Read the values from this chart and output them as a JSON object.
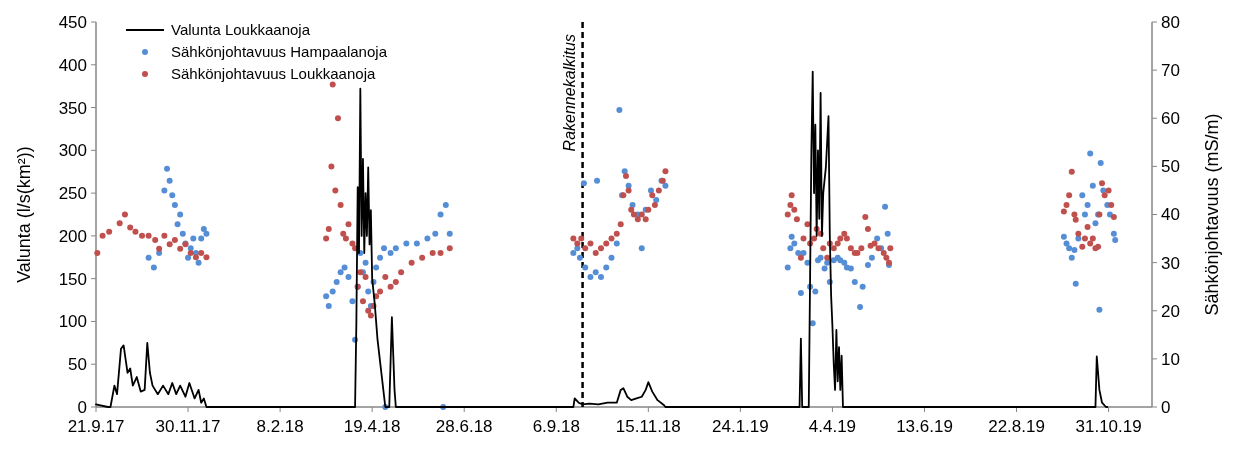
{
  "chart_data": {
    "type": "line",
    "ylabel": "Valunta (l/s(km²))",
    "y2label": "Sähkönjohtavuus (mS/m)",
    "xlim": [
      "2017-09-21",
      "2019-12-03"
    ],
    "xticks": [
      {
        "value": "2017-09-21",
        "label": "21.9.17"
      },
      {
        "value": "2017-11-30",
        "label": "30.11.17"
      },
      {
        "value": "2018-02-08",
        "label": "8.2.18"
      },
      {
        "value": "2018-04-19",
        "label": "19.4.18"
      },
      {
        "value": "2018-06-28",
        "label": "28.6.18"
      },
      {
        "value": "2018-09-06",
        "label": "6.9.18"
      },
      {
        "value": "2018-11-15",
        "label": "15.11.18"
      },
      {
        "value": "2019-01-24",
        "label": "24.1.19"
      },
      {
        "value": "2019-04-04",
        "label": "4.4.19"
      },
      {
        "value": "2019-06-13",
        "label": "13.6.19"
      },
      {
        "value": "2019-08-22",
        "label": "22.8.19"
      },
      {
        "value": "2019-10-31",
        "label": "31.10.19"
      }
    ],
    "ylim": [
      0,
      450
    ],
    "yticks": [
      0,
      50,
      100,
      150,
      200,
      250,
      300,
      350,
      400,
      450
    ],
    "y2lim": [
      0,
      80
    ],
    "y2ticks": [
      0,
      10,
      20,
      30,
      40,
      50,
      60,
      70,
      80
    ],
    "grid": false,
    "legend": "top left",
    "ref_lines": [
      {
        "axis": "x",
        "value": "2018-09-26",
        "label": "Rakennekalkitus",
        "color": "#000000",
        "line_style": "dashed"
      }
    ],
    "series": [
      {
        "name": "Valunta Loukkaanoja",
        "color": "#000000",
        "marker": "none",
        "line_style": "solid",
        "x": [
          "2017-09-21",
          "2017-09-30",
          "2017-10-02",
          "2017-10-05",
          "2017-10-07",
          "2017-10-10",
          "2017-10-12",
          "2017-10-15",
          "2017-10-17",
          "2017-10-19",
          "2017-10-22",
          "2017-10-25",
          "2017-10-28",
          "2017-10-30",
          "2017-11-01",
          "2017-11-03",
          "2017-11-07",
          "2017-11-11",
          "2017-11-15",
          "2017-11-18",
          "2017-11-21",
          "2017-11-24",
          "2017-11-28",
          "2017-12-01",
          "2017-12-05",
          "2017-12-08",
          "2017-12-10",
          "2017-12-12",
          "2017-12-14",
          "2018-04-05",
          "2018-04-06",
          "2018-04-07",
          "2018-04-08",
          "2018-04-09",
          "2018-04-10",
          "2018-04-11",
          "2018-04-12",
          "2018-04-13",
          "2018-04-14",
          "2018-04-15",
          "2018-04-16",
          "2018-04-17",
          "2018-04-18",
          "2018-04-19",
          "2018-04-21",
          "2018-04-23",
          "2018-04-26",
          "2018-04-29",
          "2018-05-02",
          "2018-05-04",
          "2018-05-06",
          "2018-05-07",
          "2018-09-19",
          "2018-09-20",
          "2018-09-23",
          "2018-09-26",
          "2018-10-01",
          "2018-10-08",
          "2018-10-15",
          "2018-10-22",
          "2018-10-25",
          "2018-10-27",
          "2018-10-30",
          "2018-11-02",
          "2018-11-06",
          "2018-11-10",
          "2018-11-13",
          "2018-11-15",
          "2018-11-18",
          "2018-11-22",
          "2018-11-27",
          "2018-11-28",
          "2019-03-10",
          "2019-03-11",
          "2019-03-12",
          "2019-03-17",
          "2019-03-18",
          "2019-03-19",
          "2019-03-20",
          "2019-03-21",
          "2019-03-22",
          "2019-03-23",
          "2019-03-24",
          "2019-03-25",
          "2019-03-26",
          "2019-03-27",
          "2019-03-28",
          "2019-03-30",
          "2019-04-01",
          "2019-04-02",
          "2019-04-03",
          "2019-04-04",
          "2019-04-05",
          "2019-04-06",
          "2019-04-07",
          "2019-04-08",
          "2019-04-09",
          "2019-04-10",
          "2019-04-11",
          "2019-04-12",
          "2019-10-21",
          "2019-10-22",
          "2019-10-24",
          "2019-10-26",
          "2019-10-29",
          "2019-10-30"
        ],
        "values": [
          3,
          0,
          0,
          25,
          15,
          68,
          72,
          40,
          45,
          25,
          35,
          18,
          20,
          75,
          40,
          25,
          15,
          25,
          15,
          28,
          15,
          25,
          12,
          28,
          10,
          20,
          5,
          10,
          0,
          0,
          0,
          100,
          257,
          180,
          372,
          200,
          290,
          180,
          250,
          200,
          280,
          190,
          230,
          150,
          120,
          80,
          40,
          0,
          0,
          105,
          20,
          0,
          0,
          10,
          5,
          3,
          4,
          3,
          5,
          5,
          20,
          22,
          12,
          8,
          10,
          12,
          20,
          29,
          18,
          8,
          2,
          0,
          0,
          80,
          0,
          0,
          150,
          300,
          392,
          250,
          330,
          200,
          300,
          220,
          367,
          200,
          250,
          280,
          340,
          200,
          130,
          94,
          50,
          20,
          90,
          30,
          70,
          20,
          60,
          0,
          0,
          59,
          20,
          5,
          0,
          0
        ]
      },
      {
        "name": "Sähkönjohtavuus Hampaalanoja",
        "type": "scatter",
        "axis": "y2",
        "color": "#558ed5",
        "marker": "circle",
        "x": [
          "2017-10-31",
          "2017-11-04",
          "2017-11-08",
          "2017-11-12",
          "2017-11-14",
          "2017-11-16",
          "2017-11-18",
          "2017-11-20",
          "2017-11-22",
          "2017-11-24",
          "2017-11-26",
          "2017-11-28",
          "2017-11-30",
          "2017-12-02",
          "2017-12-04",
          "2017-12-06",
          "2017-12-08",
          "2017-12-10",
          "2017-12-12",
          "2017-12-14",
          "2018-03-15",
          "2018-03-17",
          "2018-03-20",
          "2018-03-23",
          "2018-03-26",
          "2018-03-29",
          "2018-04-01",
          "2018-04-04",
          "2018-04-06",
          "2018-04-08",
          "2018-04-10",
          "2018-04-12",
          "2018-04-14",
          "2018-04-16",
          "2018-04-18",
          "2018-04-20",
          "2018-04-22",
          "2018-04-25",
          "2018-04-28",
          "2018-04-29",
          "2018-05-03",
          "2018-05-07",
          "2018-05-15",
          "2018-05-23",
          "2018-05-31",
          "2018-06-06",
          "2018-06-10",
          "2018-06-12",
          "2018-06-14",
          "2018-06-17",
          "2018-09-19",
          "2018-09-22",
          "2018-09-24",
          "2018-09-27",
          "2018-09-28",
          "2018-10-02",
          "2018-10-06",
          "2018-10-07",
          "2018-10-10",
          "2018-10-14",
          "2018-10-18",
          "2018-10-22",
          "2018-10-24",
          "2018-10-26",
          "2018-10-28",
          "2018-10-31",
          "2018-11-03",
          "2018-11-07",
          "2018-11-10",
          "2018-11-13",
          "2018-11-17",
          "2018-11-21",
          "2018-11-25",
          "2018-11-28",
          "2019-03-01",
          "2019-03-03",
          "2019-03-04",
          "2019-03-06",
          "2019-03-09",
          "2019-03-11",
          "2019-03-13",
          "2019-03-16",
          "2019-03-18",
          "2019-03-20",
          "2019-03-22",
          "2019-03-24",
          "2019-03-26",
          "2019-03-29",
          "2019-03-31",
          "2019-04-02",
          "2019-04-05",
          "2019-04-08",
          "2019-04-10",
          "2019-04-13",
          "2019-04-15",
          "2019-04-18",
          "2019-04-21",
          "2019-04-25",
          "2019-04-27",
          "2019-05-01",
          "2019-05-04",
          "2019-05-08",
          "2019-05-11",
          "2019-05-14",
          "2019-05-16",
          "2019-05-17",
          "2019-09-27",
          "2019-09-29",
          "2019-10-01",
          "2019-10-03",
          "2019-10-05",
          "2019-10-06",
          "2019-10-08",
          "2019-10-11",
          "2019-10-13",
          "2019-10-15",
          "2019-10-17",
          "2019-10-19",
          "2019-10-21",
          "2019-10-23",
          "2019-10-24",
          "2019-10-25",
          "2019-10-27",
          "2019-10-30",
          "2019-11-01",
          "2019-11-04",
          "2019-11-05"
        ],
        "values": [
          31,
          29,
          32,
          45,
          49.5,
          47,
          44,
          42,
          38,
          40,
          36,
          34,
          31,
          33,
          35,
          32,
          30,
          35,
          37,
          36,
          23,
          21,
          24,
          26,
          28,
          29,
          27,
          22,
          14,
          25,
          32,
          28,
          30,
          24,
          21,
          26,
          29,
          31,
          33,
          0,
          32,
          33,
          34,
          34,
          35,
          36,
          40,
          0,
          42,
          36,
          32,
          33,
          31,
          46.5,
          29,
          27,
          28,
          47,
          27,
          29,
          31,
          34,
          61.7,
          44,
          49,
          46,
          42,
          40,
          33,
          41,
          45,
          43,
          47,
          46,
          29,
          33,
          35.4,
          34,
          32,
          23.7,
          32,
          30,
          25,
          17.4,
          24,
          30.5,
          31,
          28.8,
          30,
          26,
          30.5,
          31,
          30.5,
          30,
          29,
          28.8,
          26,
          20.8,
          25,
          29.5,
          31,
          35,
          33,
          41.6,
          36,
          29.5,
          35.4,
          34,
          33,
          31,
          32.6,
          25.6,
          35,
          44,
          40,
          42,
          52.7,
          46,
          38.2,
          40,
          20.2,
          50.7,
          45,
          42,
          40,
          36,
          34.7
        ]
      },
      {
        "name": "Sähkönjohtavuus Loukkaanoja",
        "type": "scatter",
        "axis": "y2",
        "color": "#c0504d",
        "marker": "circle",
        "x": [
          "2017-09-22",
          "2017-09-26",
          "2017-10-01",
          "2017-10-09",
          "2017-10-13",
          "2017-10-17",
          "2017-10-21",
          "2017-10-26",
          "2017-10-31",
          "2017-11-05",
          "2017-11-08",
          "2017-11-12",
          "2017-11-16",
          "2017-11-20",
          "2017-11-24",
          "2017-11-28",
          "2017-12-02",
          "2017-12-06",
          "2017-12-10",
          "2017-12-14",
          "2018-03-15",
          "2018-03-17",
          "2018-03-19",
          "2018-03-20",
          "2018-03-22",
          "2018-03-24",
          "2018-03-26",
          "2018-03-28",
          "2018-03-30",
          "2018-04-01",
          "2018-04-04",
          "2018-04-06",
          "2018-04-08",
          "2018-04-10",
          "2018-04-12",
          "2018-04-14",
          "2018-04-16",
          "2018-04-18",
          "2018-04-20",
          "2018-04-22",
          "2018-04-25",
          "2018-04-29",
          "2018-05-03",
          "2018-05-07",
          "2018-05-11",
          "2018-05-19",
          "2018-05-27",
          "2018-06-04",
          "2018-06-10",
          "2018-06-17",
          "2018-09-19",
          "2018-09-22",
          "2018-09-25",
          "2018-09-28",
          "2018-10-02",
          "2018-10-06",
          "2018-10-10",
          "2018-10-14",
          "2018-10-18",
          "2018-10-22",
          "2018-10-25",
          "2018-10-27",
          "2018-10-29",
          "2018-10-31",
          "2018-11-02",
          "2018-11-04",
          "2018-11-07",
          "2018-11-10",
          "2018-11-13",
          "2018-11-15",
          "2018-11-18",
          "2018-11-20",
          "2018-11-23",
          "2018-11-26",
          "2018-11-28",
          "2019-03-01",
          "2019-03-03",
          "2019-03-04",
          "2019-03-06",
          "2019-03-08",
          "2019-03-11",
          "2019-03-13",
          "2019-03-16",
          "2019-03-18",
          "2019-03-21",
          "2019-03-23",
          "2019-03-26",
          "2019-03-28",
          "2019-03-31",
          "2019-04-02",
          "2019-04-05",
          "2019-04-08",
          "2019-04-10",
          "2019-04-13",
          "2019-04-15",
          "2019-04-18",
          "2019-04-21",
          "2019-04-23",
          "2019-04-26",
          "2019-04-29",
          "2019-05-01",
          "2019-05-03",
          "2019-05-06",
          "2019-05-09",
          "2019-05-13",
          "2019-05-15",
          "2019-05-17",
          "2019-05-18",
          "2019-09-27",
          "2019-09-29",
          "2019-10-01",
          "2019-10-03",
          "2019-10-05",
          "2019-10-06",
          "2019-10-08",
          "2019-10-11",
          "2019-10-13",
          "2019-10-15",
          "2019-10-17",
          "2019-10-19",
          "2019-10-21",
          "2019-10-23",
          "2019-10-24",
          "2019-10-26",
          "2019-10-28",
          "2019-10-31",
          "2019-11-02",
          "2019-11-04"
        ],
        "values": [
          32,
          35.6,
          36.4,
          38.2,
          40,
          37.3,
          36.4,
          35.6,
          35.6,
          34.7,
          32.9,
          35.6,
          33.8,
          34.7,
          32.9,
          33.8,
          32,
          31.1,
          32,
          31.1,
          35,
          37,
          50,
          67,
          45,
          60,
          42,
          36,
          35,
          38,
          34,
          33,
          25,
          28,
          22,
          27,
          20,
          19,
          21,
          23,
          24,
          27,
          25,
          26,
          28,
          30,
          31,
          32,
          32,
          33,
          35,
          34,
          35,
          33,
          34,
          32,
          33,
          34,
          35,
          36,
          38,
          44,
          48,
          45,
          41,
          40,
          39,
          40,
          39,
          41,
          44,
          42,
          45,
          47,
          49,
          40,
          42,
          44,
          41,
          39,
          31,
          35,
          38,
          34,
          35,
          37,
          36,
          33,
          31,
          34,
          33,
          34,
          35,
          36,
          35,
          33,
          32,
          32,
          33,
          39.5,
          37,
          33.5,
          34,
          33,
          32,
          31,
          30,
          33,
          40.6,
          42,
          44,
          48.9,
          40,
          38.9,
          36,
          33.3,
          35,
          37.4,
          34,
          35,
          33,
          33.3,
          40,
          46.5,
          44,
          45,
          42,
          39.5
        ]
      }
    ]
  }
}
